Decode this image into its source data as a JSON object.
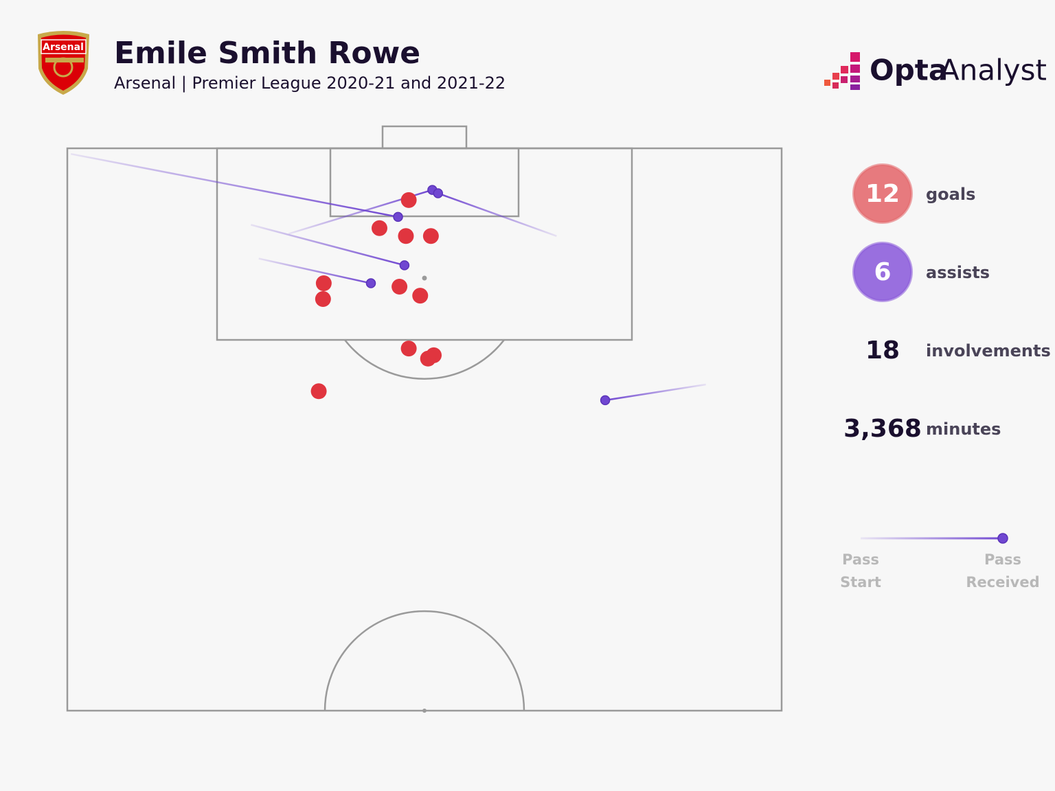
{
  "chart_data": {
    "type": "pitch",
    "title": "Emile Smith Rowe",
    "subtitle": "Arsenal | Premier League 2020-21 and 2021-22",
    "crest_text": "Arsenal",
    "brand": [
      "Opta",
      "Analyst"
    ],
    "xlim": [
      0,
      100
    ],
    "ylim": [
      0,
      50
    ],
    "goals": {
      "color": "#e0353f",
      "x": [
        47.8,
        43.7,
        47.4,
        50.9,
        35.9,
        35.8,
        46.5,
        49.4,
        47.8,
        51.3,
        50.5,
        35.2
      ],
      "y": [
        4.6,
        7.1,
        7.8,
        7.8,
        12.0,
        13.4,
        12.3,
        13.1,
        17.8,
        18.4,
        18.7,
        21.6
      ]
    },
    "assists": {
      "color": "#7047d1",
      "start_x": [
        0.5,
        31.0,
        68.5,
        25.7,
        26.8,
        89.4
      ],
      "start_y": [
        0.5,
        7.6,
        7.8,
        6.8,
        9.8,
        21.0
      ],
      "end_x": [
        46.3,
        51.1,
        51.9,
        47.2,
        42.5,
        75.3
      ],
      "end_y": [
        6.1,
        3.7,
        4.0,
        10.4,
        12.0,
        22.4
      ]
    },
    "stats": [
      {
        "value": "12",
        "label": "goals",
        "color": "#e46c70"
      },
      {
        "value": "6",
        "label": "assists",
        "color": "#8e5fdb"
      },
      {
        "value": "18",
        "label": "involvements"
      },
      {
        "value": "3,368",
        "label": "minutes"
      }
    ],
    "legend": {
      "start": [
        "Pass",
        "Start"
      ],
      "end": [
        "Pass",
        "Received"
      ]
    }
  }
}
